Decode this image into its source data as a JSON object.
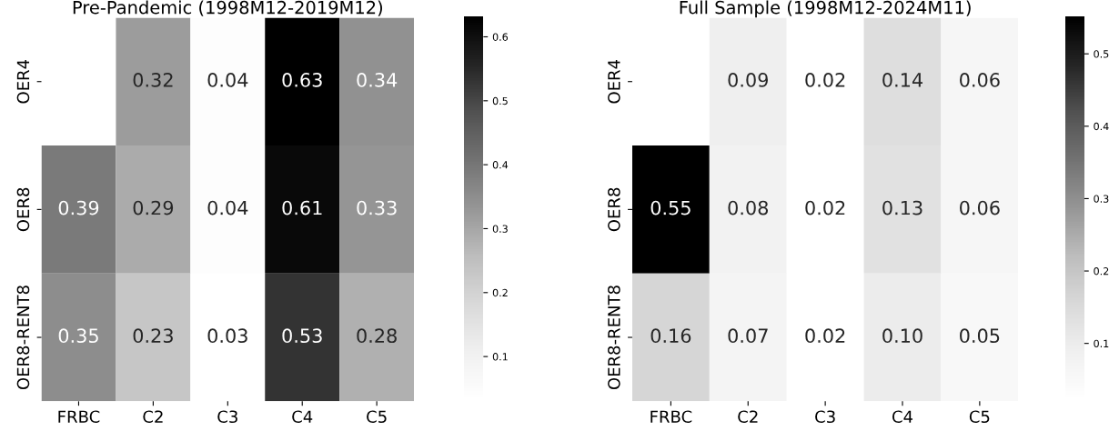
{
  "chart_data": [
    {
      "type": "heatmap",
      "title": "Pre-Pandemic (1998M12-2019M12)",
      "categories": [
        "FRBC",
        "C2",
        "C3",
        "C4",
        "C5"
      ],
      "y_categories": [
        "OER4",
        "OER8",
        "OER8-RENT8"
      ],
      "cells": [
        [
          null,
          0.32,
          0.04,
          0.63,
          0.34
        ],
        [
          0.39,
          0.29,
          0.04,
          0.61,
          0.33
        ],
        [
          0.35,
          0.23,
          0.03,
          0.53,
          0.28
        ]
      ],
      "data_labels": true,
      "clim": [
        0.03,
        0.63
      ],
      "cticks": [
        0.1,
        0.2,
        0.3,
        0.4,
        0.5,
        0.6
      ]
    },
    {
      "type": "heatmap",
      "title": "Full Sample (1998M12-2024M11)",
      "categories": [
        "FRBC",
        "C2",
        "C3",
        "C4",
        "C5"
      ],
      "y_categories": [
        "OER4",
        "OER8",
        "OER8-RENT8"
      ],
      "cells": [
        [
          null,
          0.09,
          0.02,
          0.14,
          0.06
        ],
        [
          0.55,
          0.08,
          0.02,
          0.13,
          0.06
        ],
        [
          0.16,
          0.07,
          0.02,
          0.1,
          0.05
        ]
      ],
      "cell_labels": [
        [
          null,
          "0.09",
          "0.02",
          "0.14",
          "0.06"
        ],
        [
          "0.55",
          "0.08",
          "0.02",
          "0.13",
          "0.06"
        ],
        [
          "0.16",
          "0.07",
          "0.02",
          "0.10",
          "0.05"
        ]
      ],
      "data_labels": true,
      "clim": [
        0.02,
        0.55
      ],
      "cticks": [
        0.1,
        0.2,
        0.3,
        0.4,
        0.5
      ]
    }
  ]
}
